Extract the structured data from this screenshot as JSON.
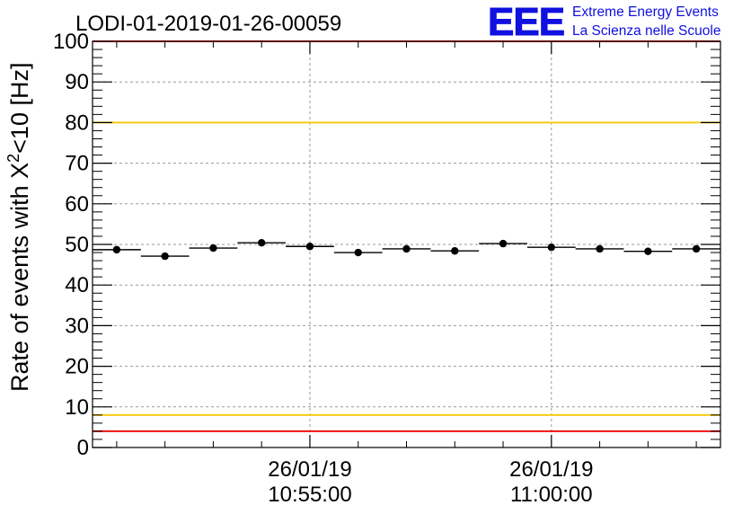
{
  "chart_data": {
    "type": "scatter",
    "title": "LODI-01-2019-01-26-00059",
    "ylabel_prefix": "Rate of events with X",
    "ylabel_sup": "2",
    "ylabel_suffix": "<10 [Hz]",
    "xlabel": "",
    "ylim": [
      0,
      100
    ],
    "y_ticks": [
      "0",
      "10",
      "20",
      "30",
      "40",
      "50",
      "60",
      "70",
      "80",
      "90",
      "100"
    ],
    "x_range_minutes": [
      -4.5,
      8.5
    ],
    "x_ticks": [
      {
        "date": "26/01/19",
        "time": "10:55:00",
        "minute": 0
      },
      {
        "date": "26/01/19",
        "time": "11:00:00",
        "minute": 5
      }
    ],
    "points": [
      {
        "x": -4.0,
        "y": 48.7
      },
      {
        "x": -3.0,
        "y": 47.1
      },
      {
        "x": -2.0,
        "y": 49.1
      },
      {
        "x": -1.0,
        "y": 50.4
      },
      {
        "x": 0.0,
        "y": 49.5
      },
      {
        "x": 1.0,
        "y": 48.0
      },
      {
        "x": 2.0,
        "y": 48.9
      },
      {
        "x": 3.0,
        "y": 48.4
      },
      {
        "x": 4.0,
        "y": 50.2
      },
      {
        "x": 5.0,
        "y": 49.3
      },
      {
        "x": 6.0,
        "y": 48.9
      },
      {
        "x": 7.0,
        "y": 48.3
      },
      {
        "x": 8.0,
        "y": 48.9
      }
    ],
    "bin_width_minutes": 1.0,
    "reference_lines": [
      {
        "y": 100,
        "color": "#ee1111"
      },
      {
        "y": 80,
        "color": "#f5cc10"
      },
      {
        "y": 8,
        "color": "#f5cc10"
      },
      {
        "y": 4,
        "color": "#ee1111"
      }
    ],
    "grid": true
  },
  "logo": {
    "mark": "EEE",
    "line1": "Extreme Energy Events",
    "line2": "La Scienza nelle Scuole",
    "color": "#1010e0"
  }
}
